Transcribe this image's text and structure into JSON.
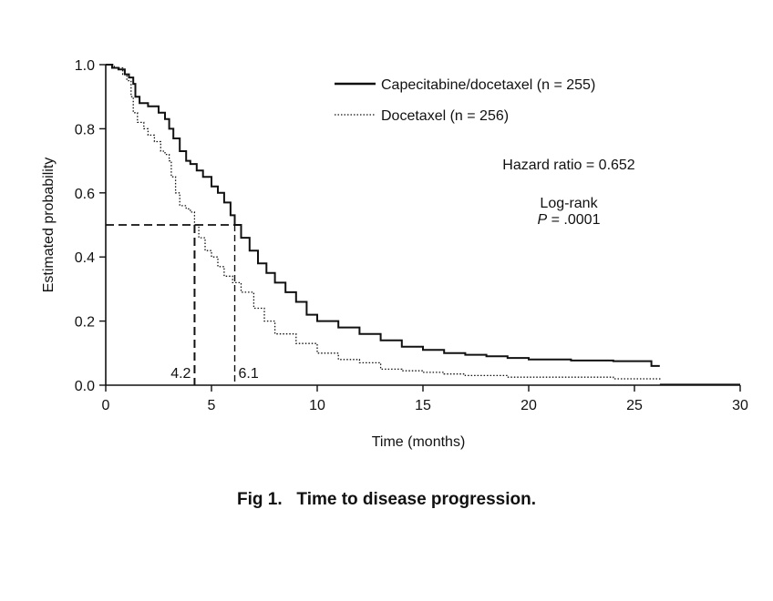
{
  "caption": "Fig 1.   Time to disease progression.",
  "chart_data": {
    "type": "line",
    "xlabel": "Time (months)",
    "ylabel": "Estimated probability",
    "xlim": [
      0,
      30
    ],
    "ylim": [
      0,
      1.0
    ],
    "x_ticks": [
      0,
      5,
      10,
      15,
      20,
      25,
      30
    ],
    "y_ticks": [
      "0.0",
      "0.2",
      "0.4",
      "0.6",
      "0.8",
      "1.0"
    ],
    "grid": false,
    "legend_position": "top-right",
    "series": [
      {
        "name": "Capecitabine/docetaxel (n = 255)",
        "style": "solid",
        "color": "#111111",
        "points": [
          [
            0,
            1.0
          ],
          [
            0.3,
            0.99
          ],
          [
            0.6,
            0.985
          ],
          [
            0.9,
            0.97
          ],
          [
            1.1,
            0.96
          ],
          [
            1.3,
            0.94
          ],
          [
            1.4,
            0.9
          ],
          [
            1.6,
            0.88
          ],
          [
            2.0,
            0.87
          ],
          [
            2.5,
            0.85
          ],
          [
            2.8,
            0.83
          ],
          [
            3.0,
            0.8
          ],
          [
            3.2,
            0.77
          ],
          [
            3.5,
            0.73
          ],
          [
            3.8,
            0.7
          ],
          [
            4.0,
            0.69
          ],
          [
            4.3,
            0.67
          ],
          [
            4.6,
            0.65
          ],
          [
            5.0,
            0.62
          ],
          [
            5.3,
            0.6
          ],
          [
            5.6,
            0.57
          ],
          [
            5.9,
            0.53
          ],
          [
            6.1,
            0.5
          ],
          [
            6.4,
            0.46
          ],
          [
            6.8,
            0.42
          ],
          [
            7.2,
            0.38
          ],
          [
            7.6,
            0.35
          ],
          [
            8.0,
            0.32
          ],
          [
            8.5,
            0.29
          ],
          [
            9.0,
            0.26
          ],
          [
            9.5,
            0.22
          ],
          [
            10.0,
            0.2
          ],
          [
            11.0,
            0.18
          ],
          [
            12.0,
            0.16
          ],
          [
            13.0,
            0.14
          ],
          [
            14.0,
            0.12
          ],
          [
            15.0,
            0.11
          ],
          [
            16.0,
            0.1
          ],
          [
            17.0,
            0.095
          ],
          [
            18.0,
            0.09
          ],
          [
            19.0,
            0.085
          ],
          [
            20.0,
            0.08
          ],
          [
            22.0,
            0.077
          ],
          [
            24.0,
            0.075
          ],
          [
            25.7,
            0.075
          ],
          [
            25.8,
            0.06
          ],
          [
            26.2,
            0.06
          ]
        ]
      },
      {
        "name": "Docetaxel (n = 256)",
        "style": "dotted",
        "color": "#111111",
        "points": [
          [
            0,
            1.0
          ],
          [
            0.4,
            0.99
          ],
          [
            0.8,
            0.97
          ],
          [
            1.0,
            0.95
          ],
          [
            1.2,
            0.9
          ],
          [
            1.3,
            0.85
          ],
          [
            1.5,
            0.82
          ],
          [
            1.8,
            0.8
          ],
          [
            2.0,
            0.78
          ],
          [
            2.3,
            0.76
          ],
          [
            2.6,
            0.73
          ],
          [
            2.8,
            0.72
          ],
          [
            3.0,
            0.7
          ],
          [
            3.1,
            0.65
          ],
          [
            3.3,
            0.6
          ],
          [
            3.5,
            0.56
          ],
          [
            3.8,
            0.55
          ],
          [
            4.0,
            0.54
          ],
          [
            4.2,
            0.5
          ],
          [
            4.4,
            0.46
          ],
          [
            4.7,
            0.42
          ],
          [
            5.0,
            0.4
          ],
          [
            5.3,
            0.37
          ],
          [
            5.6,
            0.34
          ],
          [
            6.0,
            0.32
          ],
          [
            6.4,
            0.29
          ],
          [
            7.0,
            0.24
          ],
          [
            7.5,
            0.2
          ],
          [
            8.0,
            0.16
          ],
          [
            9.0,
            0.13
          ],
          [
            10.0,
            0.1
          ],
          [
            11.0,
            0.08
          ],
          [
            12.0,
            0.07
          ],
          [
            13.0,
            0.05
          ],
          [
            14.0,
            0.045
          ],
          [
            15.0,
            0.04
          ],
          [
            16.0,
            0.035
          ],
          [
            17.0,
            0.03
          ],
          [
            19.0,
            0.025
          ],
          [
            21.0,
            0.025
          ],
          [
            24.0,
            0.02
          ],
          [
            26.2,
            0.015
          ]
        ]
      }
    ],
    "medians": [
      {
        "label": "4.2",
        "x": 4.2,
        "y": 0.5,
        "style": "long-dash"
      },
      {
        "label": "6.1",
        "x": 6.1,
        "y": 0.5,
        "style": "dash"
      }
    ],
    "annotations": {
      "hazard_ratio": "Hazard ratio = 0.652",
      "logrank_title": "Log-rank",
      "logrank_p_letter": "P",
      "logrank_p_value": " = .0001"
    }
  }
}
